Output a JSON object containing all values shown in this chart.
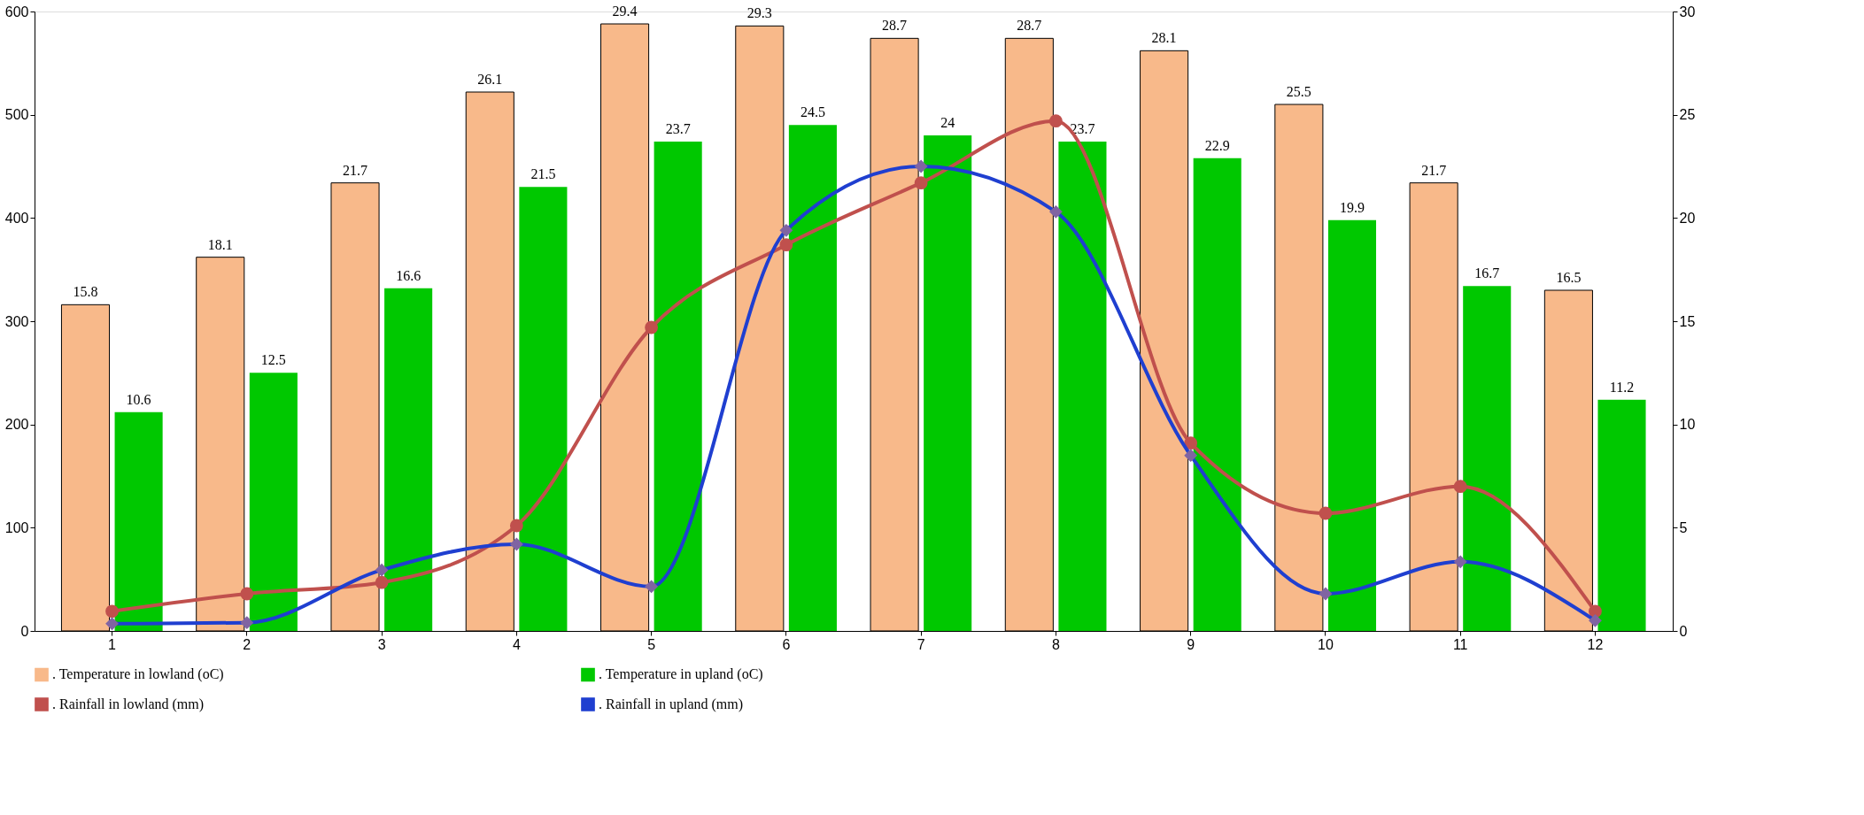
{
  "chart_data": {
    "type": "bar",
    "categories": [
      "1",
      "2",
      "3",
      "4",
      "5",
      "6",
      "7",
      "8",
      "9",
      "10",
      "11",
      "12"
    ],
    "series": [
      {
        "name": ". Temperature in lowland (oC)",
        "axis": "y2",
        "color": "#f8b98a",
        "data_labels": true,
        "values": [
          15.8,
          18.1,
          21.7,
          26.1,
          29.4,
          29.3,
          28.7,
          28.7,
          28.1,
          25.5,
          21.7,
          16.5
        ]
      },
      {
        "name": ". Temperature in upland (oC)",
        "axis": "y2",
        "color": "#00c800",
        "data_labels": true,
        "values": [
          10.6,
          12.5,
          16.6,
          21.5,
          23.7,
          24.5,
          24,
          23.7,
          22.9,
          19.9,
          16.7,
          11.2
        ]
      },
      {
        "name": ". Rainfall in lowland (mm)",
        "type": "line",
        "color": "#c0504d",
        "marker": "circle",
        "values": [
          19,
          36,
          47,
          102,
          294,
          374,
          434,
          494,
          182,
          114,
          140,
          19
        ]
      },
      {
        "name": ". Rainfall in upland (mm)",
        "type": "line",
        "color": "#1f3fd0",
        "marker": "diamond",
        "values": [
          7,
          8,
          59,
          84,
          43,
          388,
          450,
          406,
          170,
          36,
          67,
          10
        ]
      }
    ],
    "ylim": [
      0,
      600
    ],
    "yticks": [
      0,
      100,
      200,
      300,
      400,
      500,
      600
    ],
    "y2lim": [
      0,
      30
    ],
    "y2ticks": [
      0,
      5,
      10,
      15,
      20,
      25,
      30
    ],
    "grid": false,
    "legend": "bottom"
  }
}
